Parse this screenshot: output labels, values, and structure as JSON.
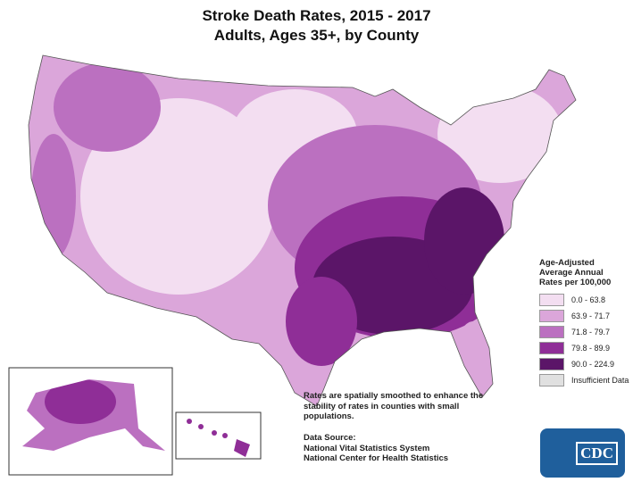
{
  "title_line1": "Stroke Death Rates, 2015 - 2017",
  "title_line2": "Adults, Ages 35+, by County",
  "legend": {
    "title": [
      "Age-Adjusted",
      "Average Annual",
      "Rates per 100,000"
    ],
    "items": [
      {
        "label": "0.0 - 63.8",
        "color": "#f3def1"
      },
      {
        "label": "63.9 - 71.7",
        "color": "#dba6da"
      },
      {
        "label": "71.8 - 79.7",
        "color": "#bb70c0"
      },
      {
        "label": "79.8 - 89.9",
        "color": "#8f2e97"
      },
      {
        "label": "90.0 - 224.9",
        "color": "#5b1568"
      },
      {
        "label": "Insufficient Data",
        "color": "#e0e0e0"
      }
    ]
  },
  "note": "Rates are spatially smoothed to enhance the stability of rates in counties with small populations.",
  "source": {
    "heading": "Data Source:",
    "lines": [
      "National Vital Statistics System",
      "National Center for Health Statistics"
    ]
  },
  "logo": {
    "text": "CDC",
    "color": "#1f5f9c"
  }
}
